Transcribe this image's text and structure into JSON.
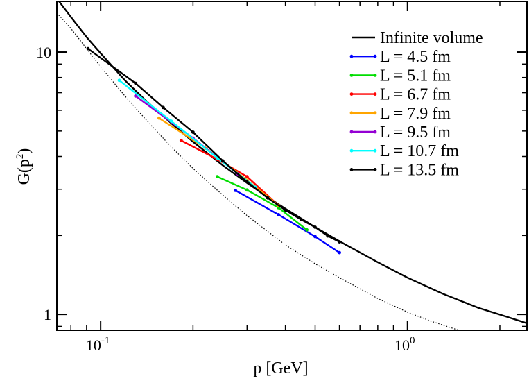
{
  "chart_data": {
    "type": "line",
    "xlabel": "p [GeV]",
    "ylabel_main": "G(p",
    "ylabel_sup": "2",
    "ylabel_close": ")",
    "xscale": "log",
    "yscale": "log",
    "xlim": [
      0.072,
      2.45
    ],
    "ylim": [
      0.87,
      15.6
    ],
    "x_ticks": [
      {
        "value": 0.1,
        "mantissa": "10",
        "exp": "-1"
      },
      {
        "value": 1.0,
        "mantissa": "10",
        "exp": "0"
      }
    ],
    "y_ticks": [
      {
        "value": 1,
        "label": "1"
      },
      {
        "value": 10,
        "label": "10"
      }
    ],
    "legend_position": "top-right",
    "reference_curve": {
      "name": "",
      "style": "dotted",
      "x": [
        0.072,
        0.08,
        0.09,
        0.1,
        0.12,
        0.14,
        0.17,
        0.2,
        0.25,
        0.3,
        0.4,
        0.5,
        0.6,
        0.8,
        1.0,
        1.2,
        1.47
      ],
      "y": [
        14.1,
        12.3,
        10.3,
        8.8,
        6.8,
        5.55,
        4.35,
        3.6,
        2.85,
        2.38,
        1.84,
        1.56,
        1.38,
        1.15,
        1.02,
        0.94,
        0.87
      ]
    },
    "series": [
      {
        "name": "Infinite volume",
        "color": "#000000",
        "markers": false,
        "x": [
          0.072,
          0.08,
          0.09,
          0.1,
          0.12,
          0.14,
          0.17,
          0.2,
          0.25,
          0.3,
          0.35,
          0.4,
          0.5,
          0.6,
          0.8,
          1.0,
          1.3,
          1.7,
          2.1,
          2.45
        ],
        "y": [
          16.0,
          13.6,
          11.4,
          9.9,
          7.8,
          6.55,
          5.35,
          4.55,
          3.7,
          3.17,
          2.8,
          2.53,
          2.15,
          1.9,
          1.58,
          1.38,
          1.2,
          1.06,
          0.98,
          0.925
        ]
      },
      {
        "name": "L = 4.5 fm",
        "color": "#0000ff",
        "markers": true,
        "x": [
          0.275,
          0.38,
          0.5,
          0.6
        ],
        "y": [
          2.97,
          2.4,
          1.98,
          1.72
        ]
      },
      {
        "name": "L = 5.1 fm",
        "color": "#00dd00",
        "markers": true,
        "x": [
          0.24,
          0.3,
          0.38,
          0.47
        ],
        "y": [
          3.35,
          2.98,
          2.55,
          2.1
        ]
      },
      {
        "name": "L = 6.7 fm",
        "color": "#ff0000",
        "markers": true,
        "x": [
          0.183,
          0.24,
          0.3,
          0.38
        ],
        "y": [
          4.6,
          3.9,
          3.35,
          2.6
        ]
      },
      {
        "name": "L = 7.9 fm",
        "color": "#ffa500",
        "markers": true,
        "x": [
          0.155,
          0.22,
          0.3,
          0.38
        ],
        "y": [
          5.6,
          4.3,
          3.25,
          2.6
        ]
      },
      {
        "name": "L = 9.5 fm",
        "color": "#9400d3",
        "markers": true,
        "x": [
          0.13,
          0.2,
          0.28
        ],
        "y": [
          6.8,
          4.7,
          3.43
        ]
      },
      {
        "name": "L = 10.7 fm",
        "color": "#00ffff",
        "markers": true,
        "x": [
          0.115,
          0.17,
          0.24,
          0.32
        ],
        "y": [
          7.8,
          5.45,
          3.95,
          3.05
        ]
      },
      {
        "name": "L = 13.5 fm",
        "color": "#000000",
        "markers": true,
        "x": [
          0.091,
          0.13,
          0.16,
          0.2,
          0.25,
          0.3,
          0.35,
          0.4,
          0.45,
          0.5,
          0.55,
          0.6
        ],
        "y": [
          10.3,
          7.6,
          6.15,
          4.95,
          3.85,
          3.2,
          2.78,
          2.5,
          2.3,
          2.15,
          1.99,
          1.89
        ]
      }
    ]
  }
}
